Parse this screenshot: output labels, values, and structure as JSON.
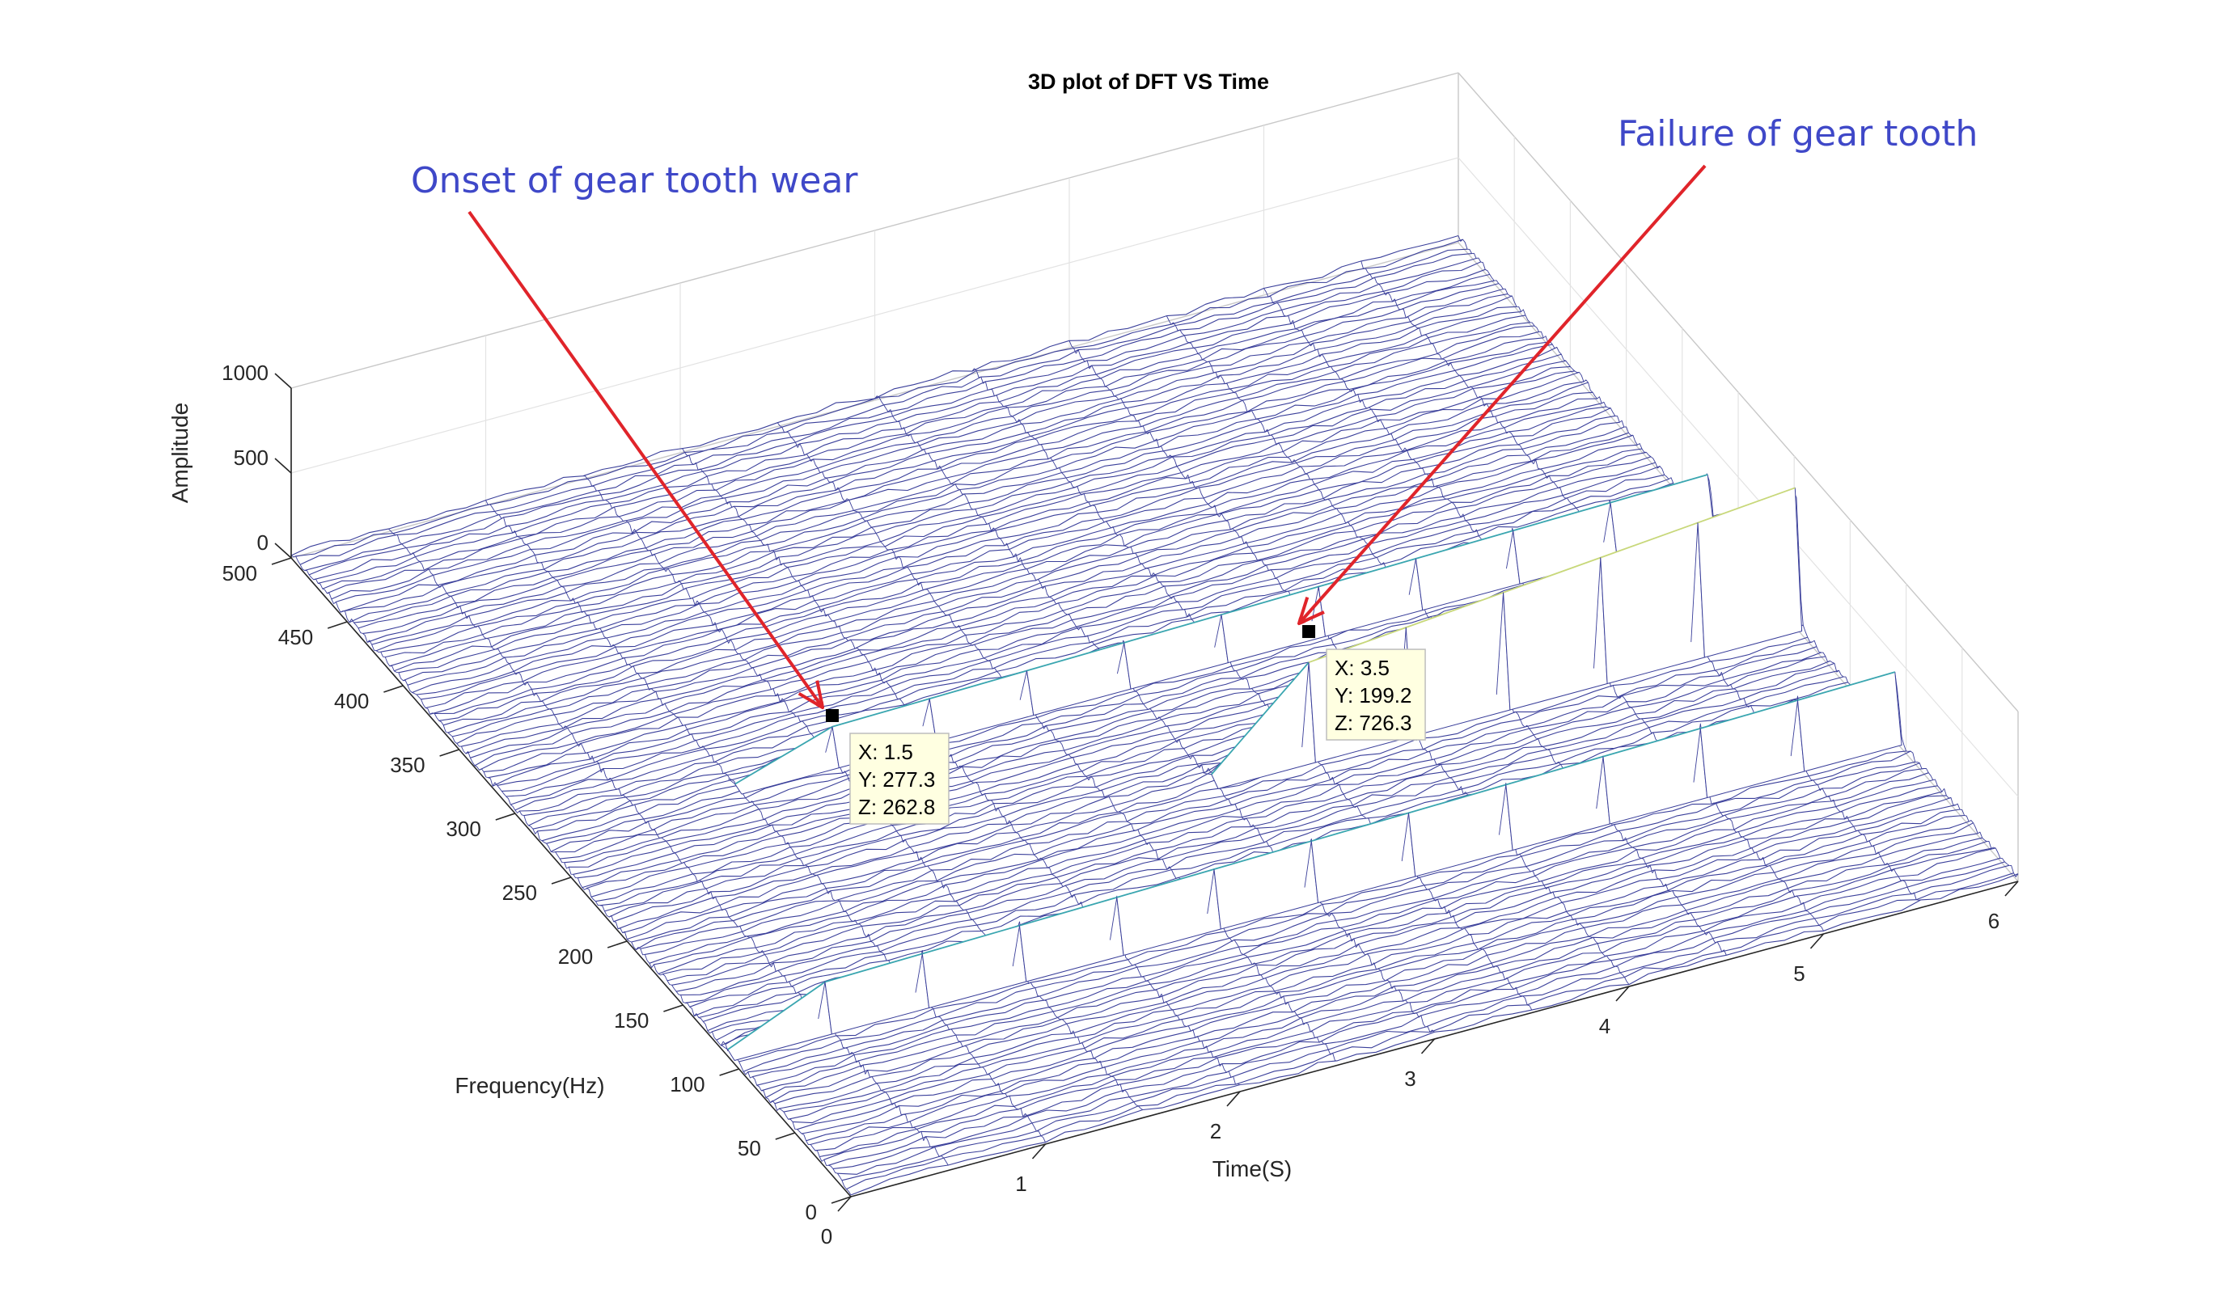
{
  "chart_data": {
    "type": "surface3d",
    "title": "3D plot of DFT VS Time",
    "xlabel": "Time(S)",
    "ylabel": "Frequency(Hz)",
    "zlabel": "Amplitude",
    "xlim": [
      0,
      6
    ],
    "ylim": [
      0,
      500
    ],
    "zlim": [
      0,
      1000
    ],
    "x_ticks": [
      "0",
      "1",
      "2",
      "3",
      "4",
      "5",
      "6"
    ],
    "y_ticks": [
      "0",
      "50",
      "100",
      "150",
      "200",
      "250",
      "300",
      "350",
      "400",
      "450",
      "500"
    ],
    "z_ticks": [
      "0",
      "500",
      "1000"
    ],
    "ridges": [
      {
        "frequency": 277.3,
        "start_time": 1.5,
        "peak_amplitude": 262.8
      },
      {
        "frequency": 199.2,
        "start_time": 3.5,
        "peak_amplitude": 726.3
      },
      {
        "frequency": 110,
        "start_time": 0.5,
        "peak_amplitude": 350
      }
    ],
    "datatips": [
      {
        "X": "X: 1.5",
        "Y": "Y: 277.3",
        "Z": "Z: 262.8",
        "x": 1.5,
        "y": 277.3,
        "z": 262.8
      },
      {
        "X": "X: 3.5",
        "Y": "Y: 199.2",
        "Z": "Z: 726.3",
        "x": 3.5,
        "y": 199.2,
        "z": 726.3
      }
    ],
    "annotations": [
      {
        "text": "Onset of gear tooth wear",
        "target": 0
      },
      {
        "text": "Failure of gear tooth",
        "target": 1
      }
    ],
    "colors": {
      "mesh": "#3a3f9a",
      "ridge_mid": "#3aa6b0",
      "ridge_high": "#c8d87a",
      "grid": "#e3e3e3",
      "annotation_text": "#3f48c8",
      "arrow": "#e0242a",
      "tip_bg": "#ffffe1"
    }
  }
}
